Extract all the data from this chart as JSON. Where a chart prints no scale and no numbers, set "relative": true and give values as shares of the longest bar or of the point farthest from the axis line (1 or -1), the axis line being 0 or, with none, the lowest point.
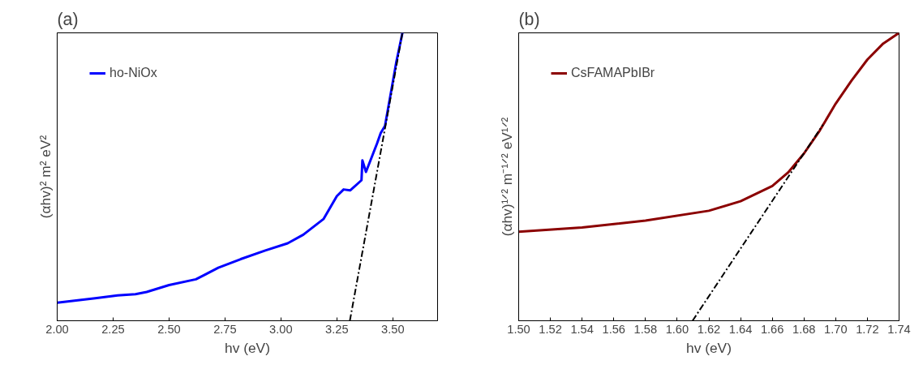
{
  "chart_data": [
    {
      "type": "line",
      "title": "(a)",
      "xlabel": "hv (eV)",
      "ylabel": "(αhv)² m² eV²",
      "relative": true,
      "xlim": [
        2.0,
        3.7
      ],
      "xticks": [
        {
          "value": 2.0,
          "label": "2.00"
        },
        2.25,
        {
          "value": 2.5,
          "label": "2.50"
        },
        2.75,
        {
          "value": 3.0,
          "label": "3.00"
        },
        3.25,
        {
          "value": 3.5,
          "label": "3.50"
        }
      ],
      "grid": false,
      "legend": "top left",
      "tick_labels": "x",
      "series": [
        {
          "name": "ho-NiOx",
          "color": "#0000ff",
          "line_style": "solid",
          "x": [
            2.0,
            2.17,
            2.27,
            2.35,
            2.4,
            2.5,
            2.62,
            2.72,
            2.82,
            2.93,
            3.03,
            3.1,
            3.19,
            3.25,
            3.28,
            3.31,
            3.36,
            3.364,
            3.38,
            3.43,
            3.446,
            3.465,
            3.49,
            3.515,
            3.543
          ],
          "values": [
            0.063,
            0.078,
            0.088,
            0.092,
            0.1,
            0.124,
            0.144,
            0.184,
            0.214,
            0.244,
            0.269,
            0.299,
            0.353,
            0.433,
            0.456,
            0.453,
            0.488,
            0.557,
            0.517,
            0.617,
            0.652,
            0.677,
            0.786,
            0.896,
            1.0
          ]
        },
        {
          "color": "#000000",
          "line_style": "dashed",
          "x": [
            3.308,
            3.543
          ],
          "values": [
            0.0,
            1.0
          ]
        }
      ]
    },
    {
      "type": "line",
      "title": "(b)",
      "xlabel": "hv (eV)",
      "ylabel": "(αhv)¹ᐟ² m⁻¹ᐟ² eV¹ᐟ²",
      "relative": true,
      "xlim": [
        1.5,
        1.74
      ],
      "xticks": [
        {
          "value": 1.5,
          "label": "1.50"
        },
        1.52,
        1.54,
        1.56,
        1.58,
        {
          "value": 1.6,
          "label": "1.60"
        },
        1.62,
        1.64,
        1.66,
        1.68,
        {
          "value": 1.7,
          "label": "1.70"
        },
        1.72,
        1.74
      ],
      "grid": false,
      "legend": "top left",
      "tick_labels": "x",
      "series": [
        {
          "name": "CsFAMAPbIBr",
          "color": "#8b0000",
          "line_style": "solid",
          "x": [
            1.5,
            1.54,
            1.58,
            1.62,
            1.64,
            1.66,
            1.67,
            1.68,
            1.69,
            1.7,
            1.71,
            1.72,
            1.73,
            1.74
          ],
          "values": [
            0.309,
            0.324,
            0.348,
            0.382,
            0.415,
            0.468,
            0.515,
            0.581,
            0.661,
            0.754,
            0.834,
            0.907,
            0.963,
            1.0
          ]
        },
        {
          "color": "#000000",
          "line_style": "dashed",
          "x": [
            1.6097,
            1.692
          ],
          "values": [
            0.0,
            0.681
          ]
        }
      ]
    }
  ]
}
